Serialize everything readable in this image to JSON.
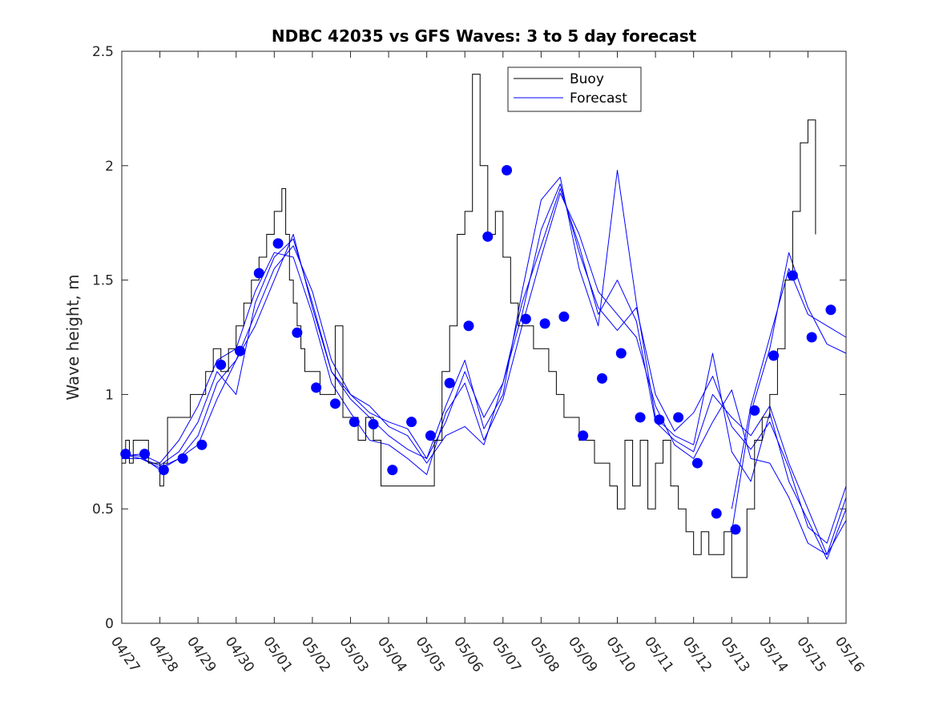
{
  "chart_data": {
    "type": "line",
    "title": "NDBC 42035 vs GFS Waves: 3 to 5 day forecast",
    "xlabel": "",
    "ylabel": "Wave height, m",
    "x_ticks": [
      "04/27",
      "04/28",
      "04/29",
      "04/30",
      "05/01",
      "05/02",
      "05/03",
      "05/04",
      "05/05",
      "05/06",
      "05/07",
      "05/08",
      "05/09",
      "05/10",
      "05/11",
      "05/12",
      "05/13",
      "05/14",
      "05/15",
      "05/16"
    ],
    "xlim": [
      0,
      19
    ],
    "x_units": "days since 04/27 00:00",
    "ylim": [
      0,
      2.5
    ],
    "y_ticks": [
      "0",
      "0.5",
      "1",
      "1.5",
      "2",
      "2.5"
    ],
    "y_tick_values": [
      0,
      0.5,
      1,
      1.5,
      2,
      2.5
    ],
    "grid": false,
    "legend": {
      "position": "top-center",
      "entries": [
        "Buoy",
        "Forecast"
      ]
    },
    "colors": {
      "buoy": "#000000",
      "forecast": "#0000ff",
      "markers": "#0000ff"
    },
    "buoy": {
      "name": "Buoy",
      "x": [
        0.0,
        0.1,
        0.2,
        0.3,
        0.5,
        0.7,
        0.9,
        1.0,
        1.1,
        1.2,
        1.4,
        1.6,
        1.8,
        2.0,
        2.2,
        2.4,
        2.6,
        2.8,
        3.0,
        3.2,
        3.4,
        3.6,
        3.8,
        4.0,
        4.1,
        4.2,
        4.3,
        4.4,
        4.5,
        4.6,
        4.7,
        4.8,
        4.9,
        5.0,
        5.2,
        5.4,
        5.6,
        5.8,
        6.0,
        6.2,
        6.4,
        6.6,
        6.8,
        7.0,
        7.2,
        7.4,
        7.6,
        7.8,
        8.0,
        8.2,
        8.4,
        8.6,
        8.8,
        9.0,
        9.2,
        9.4,
        9.6,
        9.8,
        10.0,
        10.2,
        10.4,
        10.6,
        10.8,
        11.0,
        11.2,
        11.4,
        11.6,
        11.8,
        12.0,
        12.2,
        12.4,
        12.6,
        12.8,
        13.0,
        13.2,
        13.4,
        13.6,
        13.8,
        14.0,
        14.2,
        14.4,
        14.6,
        14.8,
        15.0,
        15.2,
        15.4,
        15.6,
        15.8,
        16.0,
        16.2,
        16.4,
        16.6,
        16.8,
        17.0,
        17.2,
        17.4,
        17.6,
        17.8,
        18.0,
        18.2
      ],
      "values": [
        0.7,
        0.8,
        0.7,
        0.8,
        0.8,
        0.7,
        0.7,
        0.6,
        0.7,
        0.9,
        0.9,
        0.9,
        1.0,
        1.0,
        1.1,
        1.2,
        1.1,
        1.2,
        1.3,
        1.4,
        1.5,
        1.6,
        1.7,
        1.8,
        1.8,
        1.9,
        1.7,
        1.5,
        1.4,
        1.3,
        1.2,
        1.1,
        1.1,
        1.1,
        1.0,
        1.0,
        1.3,
        0.9,
        0.9,
        0.8,
        0.9,
        0.8,
        0.6,
        0.6,
        0.6,
        0.6,
        0.6,
        0.6,
        0.6,
        0.8,
        1.1,
        1.3,
        1.7,
        1.8,
        2.4,
        2.0,
        1.7,
        1.8,
        1.6,
        1.4,
        1.3,
        1.3,
        1.2,
        1.2,
        1.1,
        1.0,
        0.9,
        0.9,
        0.8,
        0.8,
        0.7,
        0.7,
        0.6,
        0.5,
        0.8,
        0.6,
        0.8,
        0.5,
        0.7,
        0.8,
        0.6,
        0.5,
        0.4,
        0.3,
        0.4,
        0.3,
        0.3,
        0.4,
        0.2,
        0.2,
        0.5,
        0.8,
        0.9,
        1.0,
        1.2,
        1.5,
        1.8,
        2.1,
        2.2,
        1.7
      ]
    },
    "forecast_series": [
      {
        "x": [
          0.0,
          0.5,
          1.0,
          1.5,
          2.0,
          2.5,
          3.0,
          3.5,
          4.0,
          4.5,
          5.0,
          5.5,
          6.0,
          6.5,
          7.0,
          7.5,
          8.0,
          8.5,
          9.0,
          9.5,
          10.0,
          10.5,
          11.0,
          11.5,
          12.0,
          12.5,
          13.0,
          13.5,
          14.0,
          14.5,
          15.0,
          15.5,
          16.0,
          16.5,
          17.0,
          17.5,
          18.0,
          18.5,
          19.0
        ],
        "values": [
          0.74,
          0.73,
          0.67,
          0.72,
          0.82,
          1.05,
          1.15,
          1.35,
          1.55,
          1.65,
          1.45,
          1.15,
          1.0,
          0.95,
          0.86,
          0.82,
          0.7,
          0.82,
          0.86,
          0.78,
          1.05,
          1.35,
          1.72,
          1.92,
          1.62,
          1.38,
          1.28,
          1.38,
          1.0,
          0.84,
          0.92,
          1.08,
          0.86,
          0.76,
          0.88,
          0.68,
          0.42,
          0.35,
          0.6
        ]
      },
      {
        "x": [
          0.0,
          0.5,
          1.0,
          1.5,
          2.0,
          2.5,
          3.0,
          3.5,
          4.0,
          4.5,
          5.0,
          5.5,
          6.0,
          6.5,
          7.0,
          7.5,
          8.0,
          8.5,
          9.0,
          9.5,
          10.0,
          10.5,
          11.0,
          11.5,
          12.0,
          12.5,
          13.0,
          13.5,
          14.0,
          14.5,
          15.0,
          15.5,
          16.0,
          16.5,
          17.0,
          17.5,
          18.0,
          18.5,
          19.0
        ],
        "values": [
          0.72,
          0.72,
          0.69,
          0.75,
          0.88,
          1.1,
          1.0,
          1.4,
          1.6,
          1.68,
          1.4,
          1.1,
          0.98,
          0.9,
          0.82,
          0.76,
          0.72,
          0.95,
          1.15,
          0.85,
          1.0,
          1.45,
          1.85,
          1.95,
          1.55,
          1.3,
          1.98,
          1.4,
          0.9,
          0.82,
          0.78,
          1.18,
          0.75,
          0.62,
          0.92,
          0.62,
          0.45,
          0.28,
          0.5
        ]
      },
      {
        "x": [
          0.0,
          0.5,
          1.0,
          1.5,
          2.0,
          2.5,
          3.0,
          3.5,
          4.0,
          4.5,
          5.0,
          5.5,
          6.0,
          6.5,
          7.0,
          7.5,
          8.0,
          8.5,
          9.0,
          9.5,
          10.0,
          10.5,
          11.0,
          11.5,
          12.0,
          12.5,
          13.0,
          13.5,
          14.0,
          14.5,
          15.0,
          15.5,
          16.0,
          16.5,
          17.0,
          17.5,
          18.0,
          18.5,
          19.0
        ],
        "values": [
          0.73,
          0.74,
          0.7,
          0.8,
          0.95,
          1.15,
          1.2,
          1.45,
          1.62,
          1.6,
          1.35,
          1.05,
          0.92,
          0.8,
          0.78,
          0.72,
          0.65,
          0.92,
          1.05,
          0.8,
          0.98,
          1.3,
          1.6,
          1.88,
          1.7,
          1.45,
          1.35,
          1.25,
          0.95,
          0.78,
          0.72,
          0.88,
          1.02,
          0.72,
          0.7,
          0.55,
          0.35,
          0.3,
          0.55
        ]
      },
      {
        "x": [
          0.0,
          0.5,
          1.0,
          1.5,
          2.0,
          2.5,
          3.0,
          3.5,
          4.0,
          4.5,
          5.0,
          5.5,
          6.0,
          6.5,
          7.0,
          7.5,
          8.0,
          8.5,
          9.0,
          9.5,
          10.0,
          10.5,
          11.0,
          11.5,
          12.0,
          12.5,
          13.0,
          13.5,
          14.0,
          14.5,
          15.0,
          15.5,
          16.0,
          16.5,
          17.0,
          17.5,
          18.0,
          18.5,
          19.0
        ],
        "values": [
          0.74,
          0.72,
          0.68,
          0.72,
          0.78,
          0.98,
          1.15,
          1.3,
          1.5,
          1.7,
          1.38,
          1.1,
          1.0,
          0.92,
          0.88,
          0.85,
          0.72,
          0.88,
          1.1,
          0.9,
          1.05,
          1.4,
          1.65,
          1.9,
          1.65,
          1.35,
          1.5,
          1.32,
          0.88,
          0.8,
          0.75,
          1.0,
          0.9,
          0.82,
          0.95,
          0.7,
          0.5,
          0.3,
          0.45
        ]
      }
    ],
    "forecast_tail_series": [
      {
        "x": [
          16.0,
          16.5,
          17.0,
          17.5,
          18.0,
          18.5,
          19.0
        ],
        "values": [
          0.5,
          0.95,
          1.25,
          1.55,
          1.35,
          1.3,
          1.25
        ]
      },
      {
        "x": [
          16.0,
          16.5,
          17.0,
          17.5,
          18.0,
          18.5,
          19.0
        ],
        "values": [
          0.4,
          0.92,
          1.2,
          1.62,
          1.38,
          1.22,
          1.18
        ]
      }
    ],
    "forecast_markers": {
      "x": [
        0.1,
        0.6,
        1.1,
        1.6,
        2.1,
        2.6,
        3.1,
        3.6,
        4.1,
        4.6,
        5.1,
        5.6,
        6.1,
        6.6,
        7.1,
        7.6,
        8.1,
        8.6,
        9.1,
        9.6,
        10.1,
        10.6,
        11.1,
        11.6,
        12.1,
        12.6,
        13.1,
        13.6,
        14.1,
        14.6,
        15.1,
        15.6,
        16.1,
        16.6,
        17.1,
        17.6,
        18.1,
        18.6
      ],
      "values": [
        0.74,
        0.74,
        0.67,
        0.72,
        0.78,
        1.13,
        1.19,
        1.53,
        1.66,
        1.27,
        1.03,
        0.96,
        0.88,
        0.87,
        0.67,
        0.88,
        0.82,
        1.05,
        1.3,
        1.69,
        1.98,
        1.33,
        1.31,
        1.34,
        0.82,
        1.07,
        1.18,
        0.9,
        0.89,
        0.9,
        0.7,
        0.48,
        0.41,
        0.93,
        1.17,
        1.52,
        1.25,
        1.37
      ]
    }
  }
}
